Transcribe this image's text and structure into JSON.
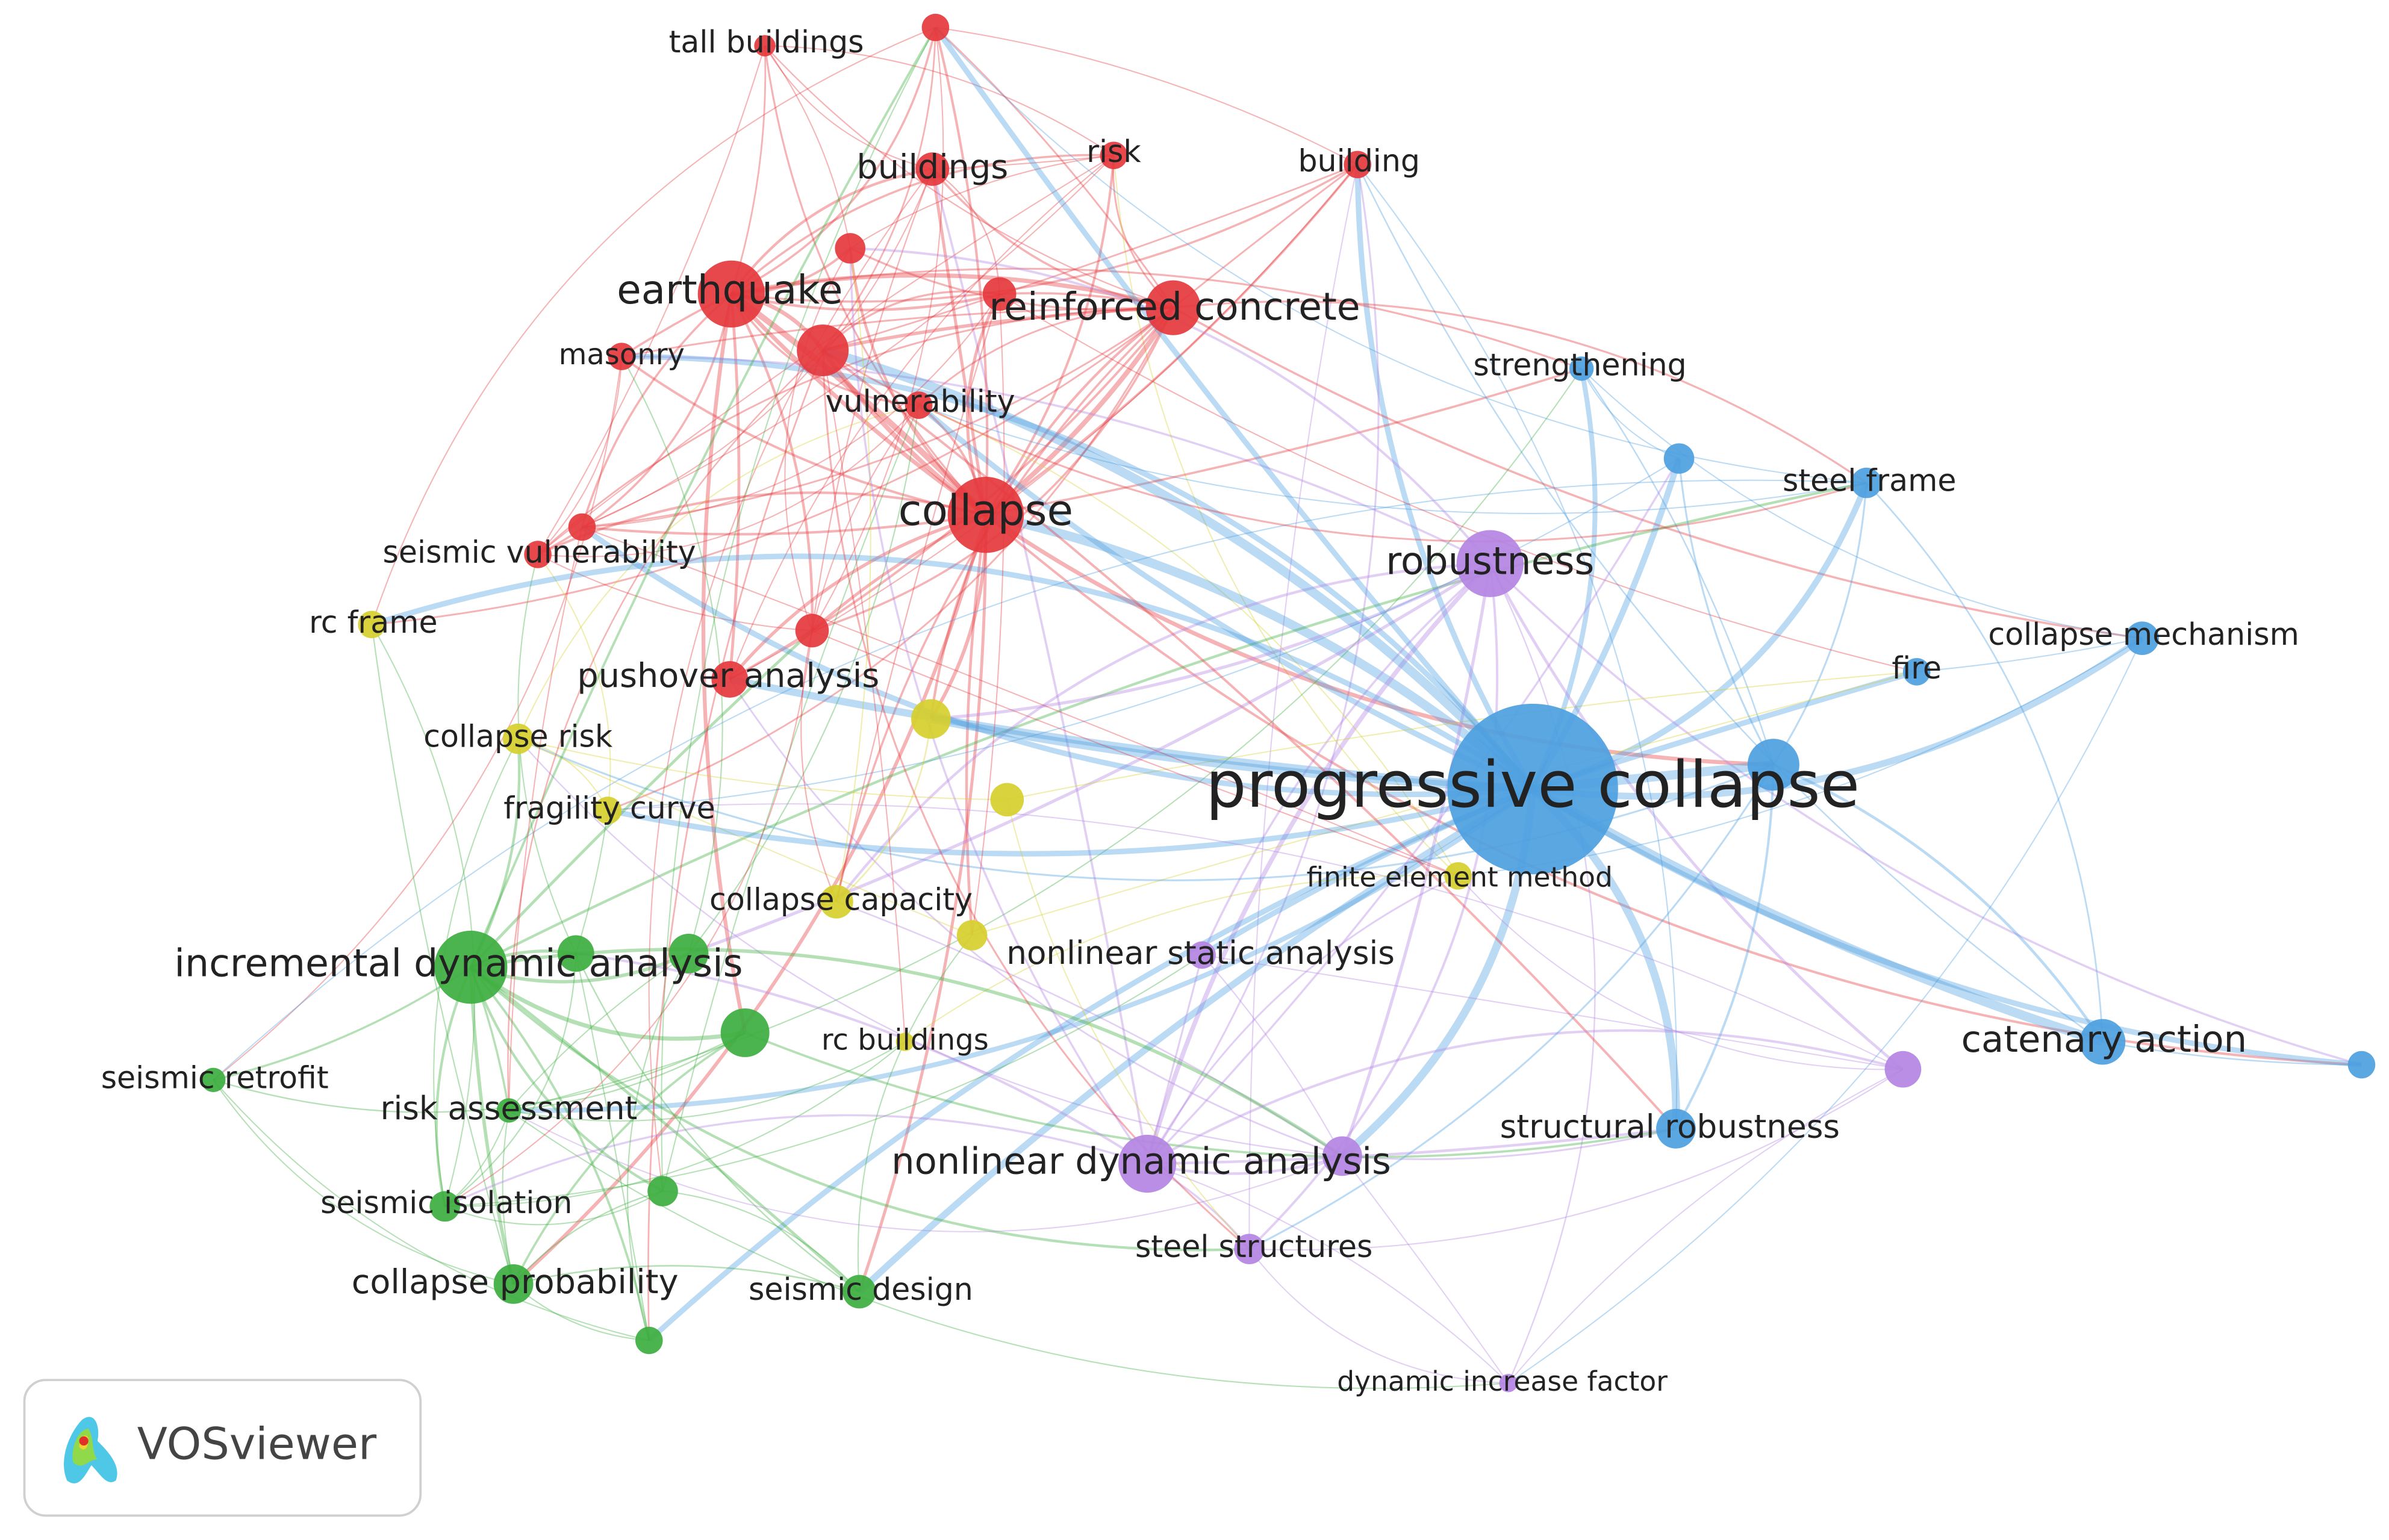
{
  "cluster_colors": [
    "#e5383d",
    "#3dae3f",
    "#4d9fe0",
    "#d6cf2e",
    "#b484e2"
  ],
  "nodes": [
    {
      "label": "tall buildings",
      "cluster": 0
    },
    {
      "label": "buildings",
      "cluster": 0
    },
    {
      "label": "risk",
      "cluster": 0
    },
    {
      "label": "building",
      "cluster": 0
    },
    {
      "label": "earthquake",
      "cluster": 0
    },
    {
      "label": "reinforced concrete",
      "cluster": 0
    },
    {
      "label": "masonry",
      "cluster": 0
    },
    {
      "label": "vulnerability",
      "cluster": 0
    },
    {
      "label": "collapse",
      "cluster": 0
    },
    {
      "label": "seismic vulnerability",
      "cluster": 0
    },
    {
      "label": "pushover analysis",
      "cluster": 0
    },
    {
      "label": "strengthening",
      "cluster": 2
    },
    {
      "label": "steel frame",
      "cluster": 2
    },
    {
      "label": "robustness",
      "cluster": 4
    },
    {
      "label": "collapse mechanism",
      "cluster": 2
    },
    {
      "label": "fire",
      "cluster": 2
    },
    {
      "label": "rc frame",
      "cluster": 3
    },
    {
      "label": "collapse risk",
      "cluster": 3
    },
    {
      "label": "progressive collapse",
      "cluster": 2
    },
    {
      "label": "fragility curve",
      "cluster": 3
    },
    {
      "label": "finite element method",
      "cluster": 3
    },
    {
      "label": "collapse capacity",
      "cluster": 3
    },
    {
      "label": "nonlinear static analysis",
      "cluster": 4
    },
    {
      "label": "incremental dynamic analysis",
      "cluster": 1
    },
    {
      "label": "catenary action",
      "cluster": 2
    },
    {
      "label": "rc buildings",
      "cluster": 3
    },
    {
      "label": "seismic retrofit",
      "cluster": 1
    },
    {
      "label": "risk assessment",
      "cluster": 1
    },
    {
      "label": "structural robustness",
      "cluster": 2
    },
    {
      "label": "nonlinear dynamic analysis",
      "cluster": 4
    },
    {
      "label": "seismic isolation",
      "cluster": 1
    },
    {
      "label": "steel structures",
      "cluster": 4
    },
    {
      "label": "collapse probability",
      "cluster": 1
    },
    {
      "label": "seismic design",
      "cluster": 1
    },
    {
      "label": "dynamic increase factor",
      "cluster": 4
    }
  ],
  "logo": {
    "text": "VOSviewer"
  }
}
